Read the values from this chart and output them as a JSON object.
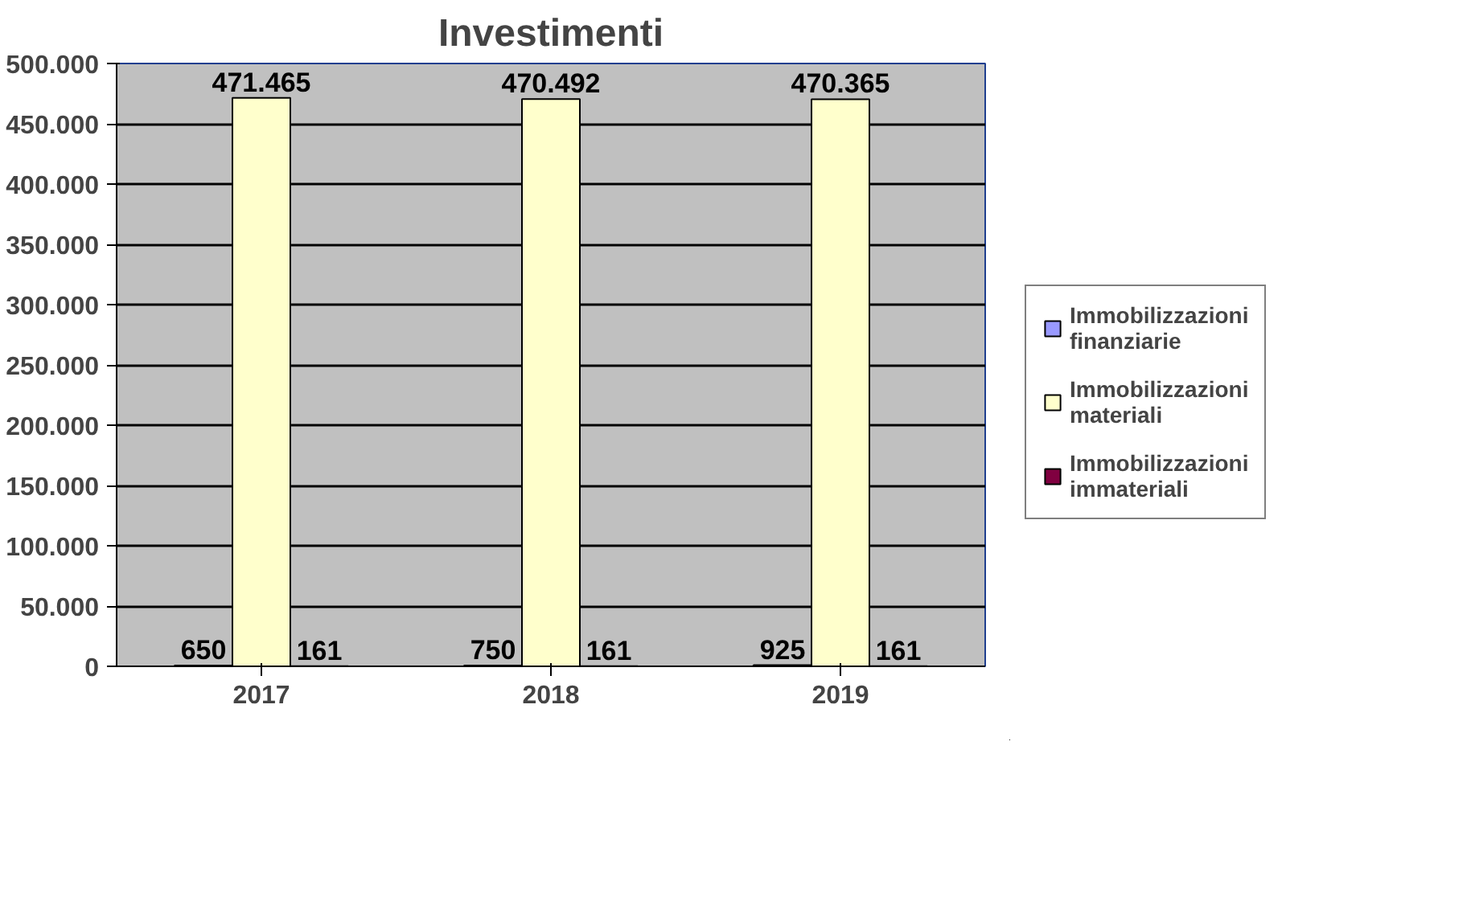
{
  "chart_data": {
    "type": "bar",
    "title": "Investimenti",
    "categories": [
      "2017",
      "2018",
      "2019"
    ],
    "series": [
      {
        "name": "Immobilizzazioni finanziarie",
        "color": "#9999ff",
        "values": [
          650,
          750,
          925
        ],
        "value_labels": [
          "650",
          "750",
          "925"
        ]
      },
      {
        "name": "Immobilizzazioni materiali",
        "color": "#ffffcc",
        "values": [
          471465,
          470492,
          470365
        ],
        "value_labels": [
          "471.465",
          "470.492",
          "470.365"
        ]
      },
      {
        "name": "Immobilizzazioni immateriali",
        "color": "#800040",
        "values": [
          161,
          161,
          161
        ],
        "value_labels": [
          "161",
          "161",
          "161"
        ]
      }
    ],
    "ylim": [
      0,
      500000
    ],
    "yticks": [
      {
        "value": 0,
        "label": "0"
      },
      {
        "value": 50000,
        "label": "50.000"
      },
      {
        "value": 100000,
        "label": "100.000"
      },
      {
        "value": 150000,
        "label": "150.000"
      },
      {
        "value": 200000,
        "label": "200.000"
      },
      {
        "value": 250000,
        "label": "250.000"
      },
      {
        "value": 300000,
        "label": "300.000"
      },
      {
        "value": 350000,
        "label": "350.000"
      },
      {
        "value": 400000,
        "label": "400.000"
      },
      {
        "value": 450000,
        "label": "450.000"
      },
      {
        "value": 500000,
        "label": "500.000"
      }
    ],
    "grid": "y",
    "legend": "right"
  }
}
